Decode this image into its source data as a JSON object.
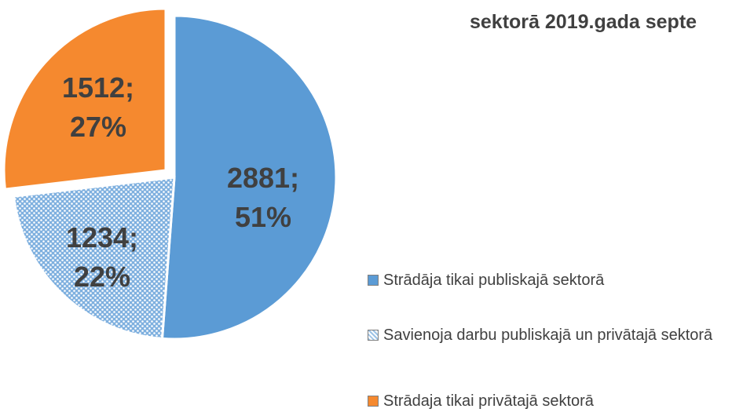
{
  "chart_data": {
    "type": "pie",
    "title": "sektorā 2019.gada septe",
    "categories": [
      "Strādāja tikai publiskajā sektorā",
      "Savienoja darbu publiskajā un privātajā sektorā",
      "Strādaja tikai privātajā sektorā"
    ],
    "values": [
      2881,
      1234,
      1512
    ],
    "value_labels": [
      "2881; 51%",
      "1234; 22%",
      "1512; 27%"
    ],
    "colors": [
      "#5b9bd5",
      "#9dc3e6",
      "#f5892f"
    ]
  }
}
